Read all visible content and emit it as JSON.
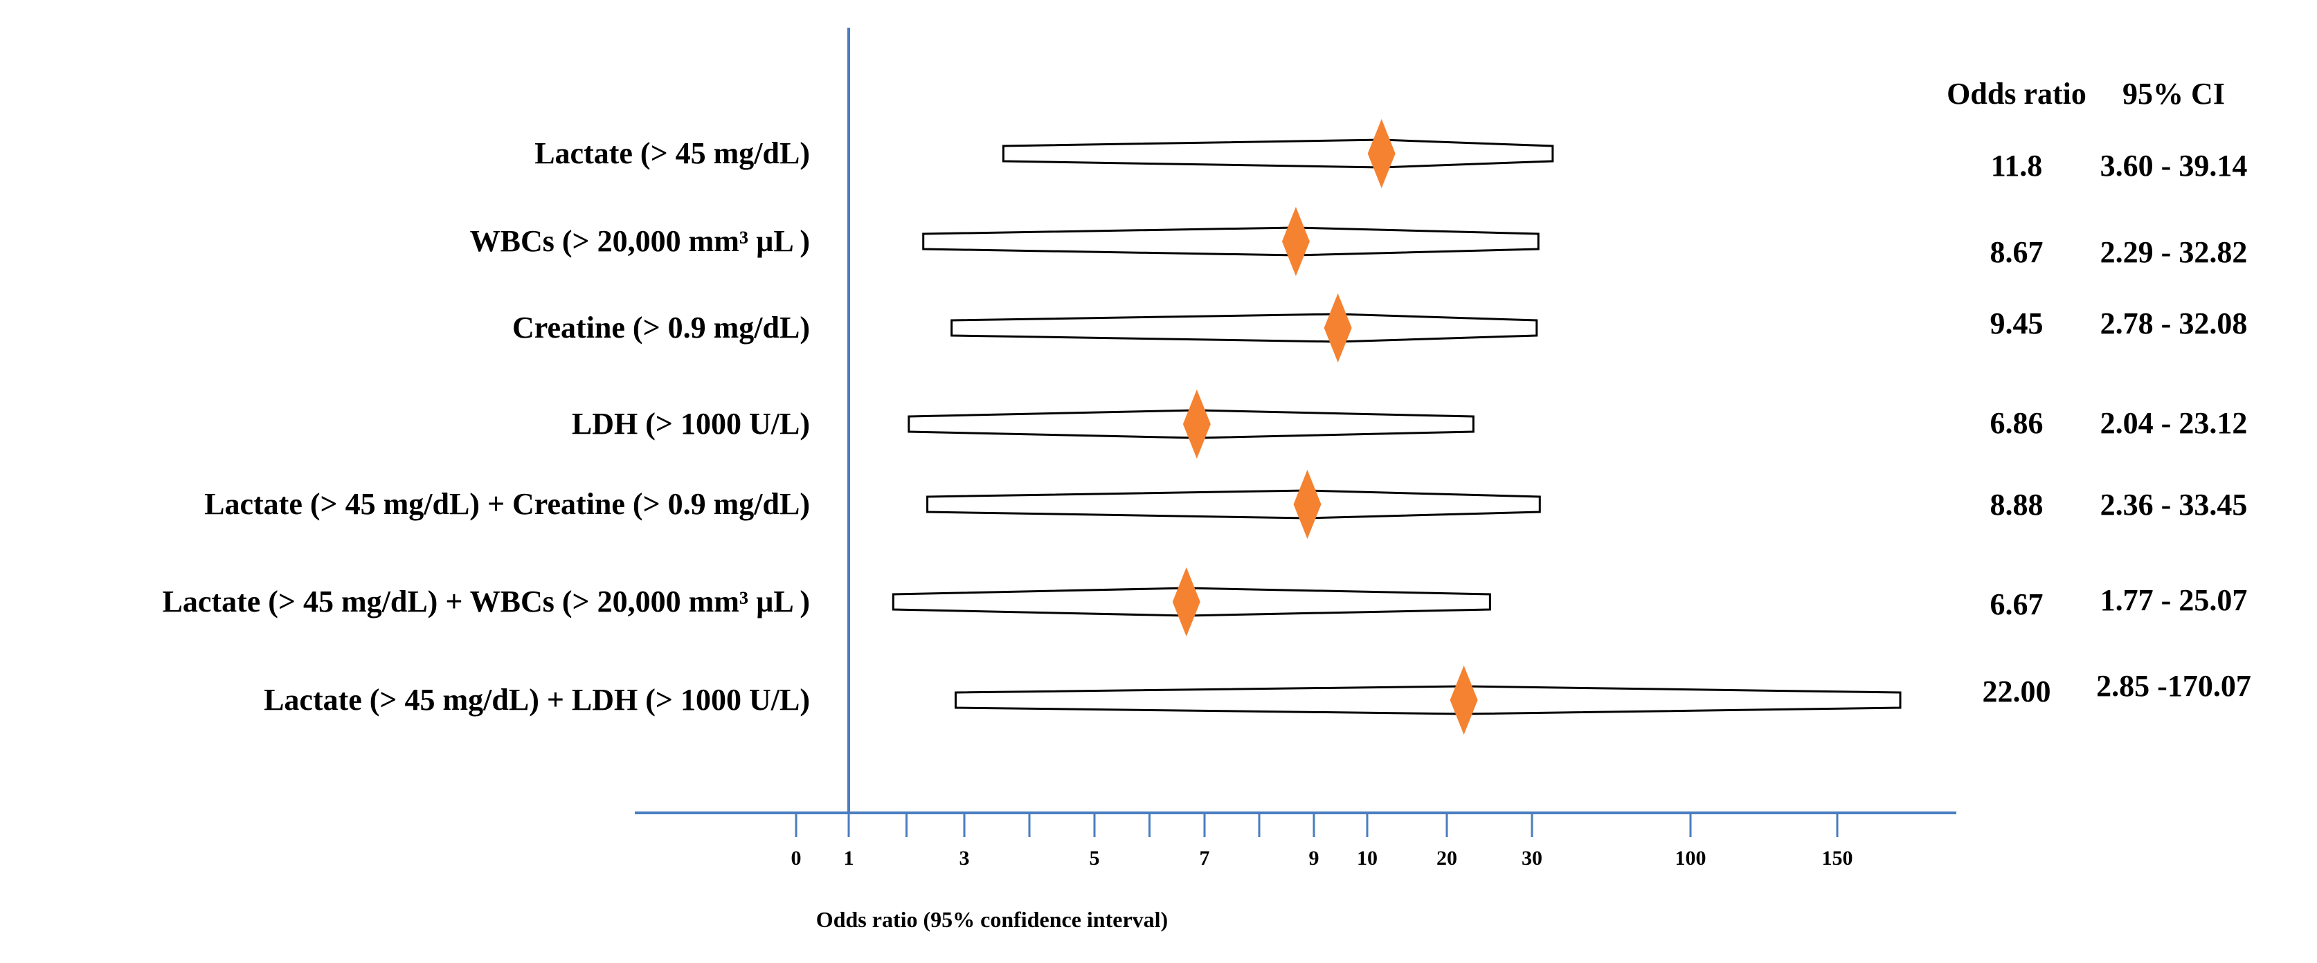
{
  "chart_data": {
    "type": "forest",
    "title": "",
    "xlabel": "Odds ratio (95% confidence interval)",
    "ylabel": "",
    "header": {
      "or_label": "Odds ratio",
      "ci_label": "95% CI"
    },
    "ticks": [
      "0",
      "1",
      "3",
      "5",
      "7",
      "9",
      "10",
      "20",
      "30",
      "100",
      "150"
    ],
    "tick_positions": [
      0,
      1,
      3,
      5,
      7,
      9,
      10,
      20,
      30,
      100,
      150
    ],
    "minor_ticks": [
      2,
      4,
      6,
      8
    ],
    "reference_line": 1,
    "rows": [
      {
        "label": "Lactate (> 45 mg/dL)",
        "odds_ratio": 11.8,
        "ci_low": 3.6,
        "ci_high": 39.14,
        "or_text": "11.8",
        "ci_text": "3.60 - 39.14"
      },
      {
        "label": "WBCs (> 20,000 mm³ µL )",
        "odds_ratio": 8.67,
        "ci_low": 2.29,
        "ci_high": 32.82,
        "or_text": "8.67",
        "ci_text": "2.29 - 32.82"
      },
      {
        "label": "Creatine  (> 0.9 mg/dL)",
        "odds_ratio": 9.45,
        "ci_low": 2.78,
        "ci_high": 32.08,
        "or_text": "9.45",
        "ci_text": "2.78 - 32.08"
      },
      {
        "label": "LDH (> 1000 U/L)",
        "odds_ratio": 6.86,
        "ci_low": 2.04,
        "ci_high": 23.12,
        "or_text": "6.86",
        "ci_text": "2.04 - 23.12"
      },
      {
        "label": "Lactate (> 45 mg/dL) +  Creatine  (> 0.9 mg/dL)",
        "odds_ratio": 8.88,
        "ci_low": 2.36,
        "ci_high": 33.45,
        "or_text": "8.88",
        "ci_text": "2.36 - 33.45"
      },
      {
        "label": "Lactate (> 45 mg/dL) + WBCs (> 20,000 mm³ µL )",
        "odds_ratio": 6.67,
        "ci_low": 1.77,
        "ci_high": 25.07,
        "or_text": "6.67",
        "ci_text": "1.77 - 25.07"
      },
      {
        "label": "Lactate (> 45 mg/dL) + LDH (> 1000 U/L)",
        "odds_ratio": 22.0,
        "ci_low": 2.85,
        "ci_high": 170.07,
        "or_text": "22.00",
        "ci_text": "2.85 -170.07"
      }
    ],
    "colors": {
      "axis": "#4a7dbf",
      "marker": "#f58231",
      "bar_stroke": "#000000"
    }
  }
}
